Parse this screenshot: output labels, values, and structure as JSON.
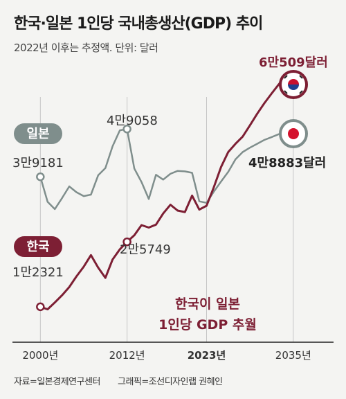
{
  "title": "한국·일본 1인당 국내총생산(GDP) 추이",
  "subtitle": "2022년 이후는 추정액. 단위: 달러",
  "source": "자료=일본경제연구센터",
  "credit": "그래픽=조선디자인랩 권혜인",
  "colors": {
    "korea": "#7d1f34",
    "japan": "#7f8e8c",
    "bg": "#f4f4f2"
  },
  "chart_data": {
    "type": "line",
    "xlim": [
      1997,
      2040
    ],
    "ylim": [
      5000,
      70000
    ],
    "x_ticks": [
      {
        "x": 2000,
        "label": "2000년",
        "bold": false
      },
      {
        "x": 2012,
        "label": "2012년",
        "bold": false
      },
      {
        "x": 2023,
        "label": "2023년",
        "bold": true
      },
      {
        "x": 2035,
        "label": "2035년",
        "bold": false
      }
    ],
    "series": [
      {
        "name": "일본",
        "color": "#7f8e8c",
        "x": [
          2000,
          2001,
          2002,
          2003,
          2004,
          2005,
          2006,
          2007,
          2008,
          2009,
          2010,
          2011,
          2012,
          2013,
          2014,
          2015,
          2016,
          2017,
          2018,
          2019,
          2020,
          2021,
          2022,
          2023,
          2024,
          2025,
          2026,
          2027,
          2028,
          2029,
          2030,
          2031,
          2032,
          2033,
          2034,
          2035
        ],
        "y": [
          39181,
          34000,
          32500,
          34800,
          37200,
          36000,
          35200,
          35500,
          39500,
          41000,
          45500,
          48800,
          49058,
          40900,
          38100,
          34600,
          39600,
          38600,
          39800,
          40400,
          40300,
          40000,
          34100,
          33800,
          36100,
          38200,
          40200,
          42800,
          44300,
          45200,
          46000,
          46800,
          47400,
          48000,
          48500,
          48883
        ]
      },
      {
        "name": "한국",
        "color": "#7d1f34",
        "x": [
          2000,
          2001,
          2002,
          2003,
          2004,
          2005,
          2006,
          2007,
          2008,
          2009,
          2010,
          2011,
          2012,
          2013,
          2014,
          2015,
          2016,
          2017,
          2018,
          2019,
          2020,
          2021,
          2022,
          2023,
          2024,
          2025,
          2026,
          2027,
          2028,
          2029,
          2030,
          2031,
          2032,
          2033,
          2034,
          2035
        ],
        "y": [
          12321,
          11800,
          13200,
          14700,
          16400,
          18600,
          20600,
          23000,
          20400,
          18300,
          22100,
          24200,
          25749,
          27100,
          29200,
          28700,
          29300,
          31600,
          33400,
          32200,
          31900,
          35300,
          32400,
          33200,
          37000,
          41200,
          44300,
          46000,
          47500,
          49800,
          52200,
          54400,
          56400,
          58300,
          60100,
          60509
        ]
      }
    ],
    "labels": {
      "japan_tag": "일본",
      "korea_tag": "한국",
      "japan_2000": "3만9181",
      "japan_2012": "4만9058",
      "japan_2035": "4만8883달러",
      "korea_2000": "1만2321",
      "korea_2012": "2만5749",
      "korea_2035": "6만509달러",
      "crossover_line1": "한국이 일본",
      "crossover_line2": "1인당 GDP 추월"
    }
  }
}
